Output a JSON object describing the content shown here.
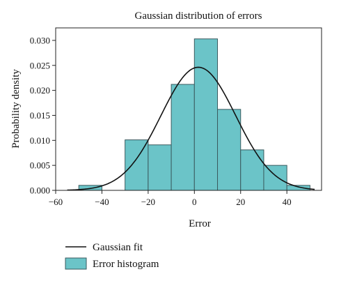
{
  "chart_data": {
    "type": "bar",
    "title": "Gaussian distribution of errors",
    "xlabel": "Error",
    "ylabel": "Probability density",
    "xlim": [
      -60,
      55
    ],
    "ylim": [
      0,
      0.0325
    ],
    "x_ticks": [
      -60,
      -40,
      -20,
      0,
      20,
      40
    ],
    "x_tick_labels": [
      "−60",
      "−40",
      "−20",
      "0",
      "20",
      "40"
    ],
    "y_ticks": [
      0.0,
      0.005,
      0.01,
      0.015,
      0.02,
      0.025,
      0.03
    ],
    "y_tick_labels": [
      "0.000",
      "0.005",
      "0.010",
      "0.015",
      "0.020",
      "0.025",
      "0.030"
    ],
    "grid": false,
    "legend_position": "below",
    "series": [
      {
        "name": "Error histogram",
        "kind": "histogram",
        "color": "#6bc4c8",
        "edge_color": "#3a5a5e",
        "bin_edges": [
          -50,
          -40,
          -30,
          -20,
          -10,
          0,
          10,
          20,
          30,
          40,
          50
        ],
        "values": [
          0.001,
          0.0,
          0.0101,
          0.0091,
          0.0212,
          0.0303,
          0.0162,
          0.0081,
          0.005,
          0.001
        ]
      },
      {
        "name": "Gaussian fit",
        "kind": "line",
        "color": "#111111",
        "mean": 1.7,
        "std": 16.2,
        "x_range": [
          -55,
          52
        ]
      }
    ]
  }
}
